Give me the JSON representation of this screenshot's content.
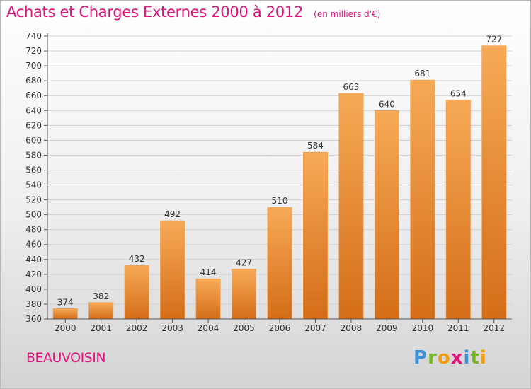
{
  "header": {
    "title": "Achats et Charges Externes 2000 à 2012",
    "unit": "(en milliers d'€)"
  },
  "footer": {
    "town": "BEAUVOISIN",
    "logo": "Proxiti"
  },
  "colors": {
    "title": "#e0147a",
    "bar_light": "#f5a552",
    "bar_dark": "#d9721c",
    "logo_blue": "#3b8fd4",
    "logo_green": "#76b82a",
    "logo_orange": "#f39c12",
    "logo_pink": "#e0147a"
  },
  "chart_data": {
    "type": "bar",
    "title": "Achats et Charges Externes 2000 à 2012",
    "subtitle": "(en milliers d'€)",
    "categories": [
      "2000",
      "2001",
      "2002",
      "2003",
      "2004",
      "2005",
      "2006",
      "2007",
      "2008",
      "2009",
      "2010",
      "2011",
      "2012"
    ],
    "values": [
      374,
      382,
      432,
      492,
      414,
      427,
      510,
      584,
      663,
      640,
      681,
      654,
      727
    ],
    "ylim": [
      360,
      740
    ],
    "yticks": [
      360,
      380,
      400,
      420,
      440,
      460,
      480,
      500,
      520,
      540,
      560,
      580,
      600,
      620,
      640,
      660,
      680,
      700,
      720,
      740
    ],
    "grid": true,
    "legend": "none"
  }
}
